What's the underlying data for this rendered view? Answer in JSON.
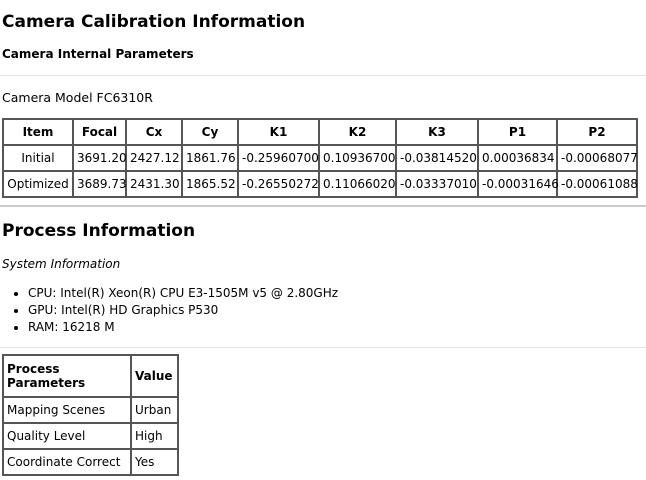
{
  "title": "Camera Calibration Information",
  "internal_heading": "Camera Internal Parameters",
  "camera_model": "Camera Model FC6310R",
  "calib_table": {
    "headers": [
      "Item",
      "Focal",
      "Cx",
      "Cy",
      "K1",
      "K2",
      "K3",
      "P1",
      "P2"
    ],
    "rows": [
      [
        "Initial",
        "3691.20",
        "2427.12",
        "1861.76",
        "-0.25960700",
        "0.10936700",
        "-0.03814520",
        "0.00036834",
        "-0.00068077"
      ],
      [
        "Optimized",
        "3689.73",
        "2431.30",
        "1865.52",
        "-0.26550272",
        "0.11066020",
        "-0.03337010",
        "-0.00031646",
        "-0.00061088"
      ]
    ]
  },
  "process_title": "Process Information",
  "system_heading": "System Information",
  "system_items": [
    "CPU: Intel(R) Xeon(R) CPU E3-1505M v5 @ 2.80GHz",
    "GPU: Intel(R) HD Graphics P530",
    "RAM: 16218 M"
  ],
  "process_table": {
    "headers": [
      "Process Parameters",
      "Value"
    ],
    "rows": [
      [
        "Mapping Scenes",
        "Urban"
      ],
      [
        "Quality Level",
        "High"
      ],
      [
        "Coordinate Correct",
        "Yes"
      ]
    ]
  }
}
